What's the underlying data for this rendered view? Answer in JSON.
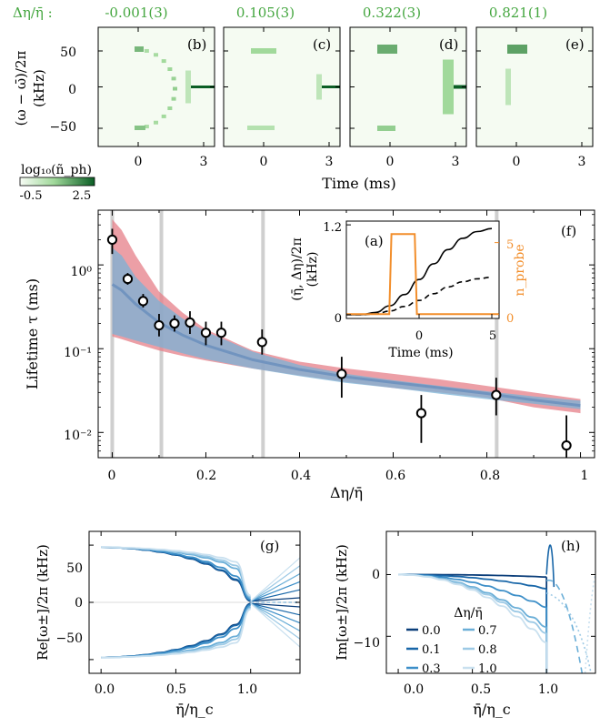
{
  "colors": {
    "green": "#44a63f",
    "green_dark": "#0b5e25",
    "green_light": "#e9f6e4",
    "orange": "#f28e2b",
    "red_band": "#e57f88",
    "blue_band": "#7ab1d6",
    "overlap": "#8d8bb6",
    "median": "#6b8fbd",
    "vline": "#cfcfcf",
    "blues": [
      "#0b3e7a",
      "#1866a8",
      "#3d8fc8",
      "#6aaed7",
      "#9cc9e5",
      "#c9e0ef"
    ]
  },
  "top_row": {
    "delta_label": "Δη/η̄ :",
    "deltas": [
      "-0.001(3)",
      "0.105(3)",
      "0.322(3)",
      "0.821(1)"
    ],
    "panel_labels": [
      "(b)",
      "(c)",
      "(d)",
      "(e)"
    ],
    "ylabel_line1": "(ω − ω̄)/2π",
    "ylabel_line2": "(kHz)",
    "yticks": [
      "50",
      "0",
      "−50"
    ],
    "xticks": [
      "0",
      "3"
    ],
    "xlabel": "Time (ms)",
    "colorbar_label": "log₁₀(ñ_ph)",
    "colorbar_ticks": [
      "-0.5",
      "2.5"
    ]
  },
  "panel_f": {
    "label": "(f)",
    "ylabel": "Lifetime τ (ms)",
    "xlabel": "Δη/η̄",
    "xticks": [
      "0",
      "0.2",
      "0.4",
      "0.6",
      "0.8",
      "1"
    ],
    "ytick_labels": [
      "10⁰",
      "10⁻¹",
      "10⁻²"
    ]
  },
  "panel_a": {
    "label": "(a)",
    "ylabel_line1": "(η̄, Δη)/2π",
    "ylabel_line2": "(kHz)",
    "ylabel_right": "n_probe",
    "xlabel": "Time (ms)",
    "yticks_left": [
      "1.2",
      "0"
    ],
    "yticks_right": [
      "5",
      "0"
    ],
    "xticks": [
      "0",
      "5"
    ]
  },
  "panel_g": {
    "label": "(g)",
    "ylabel": "Re[ω±]/2π (kHz)",
    "xlabel": "η̄/η_c",
    "yticks": [
      "50",
      "0",
      "−50"
    ],
    "xticks": [
      "0.0",
      "0.5",
      "1.0"
    ]
  },
  "panel_h": {
    "label": "(h)",
    "ylabel": "Im[ω±]/2π (kHz)",
    "xlabel": "η̄/η_c",
    "yticks": [
      "0",
      "−10"
    ],
    "xticks": [
      "0.0",
      "0.5",
      "1.0"
    ],
    "legend_title": "Δη/η̄",
    "legend_entries": [
      "0.0",
      "0.1",
      "0.3",
      "0.7",
      "0.8",
      "1.0"
    ]
  },
  "chart_data": [
    {
      "type": "heatmap",
      "panels": [
        "(b)",
        "(c)",
        "(d)",
        "(e)"
      ],
      "delta_eta_over_eta": [
        "-0.001(3)",
        "0.105(3)",
        "0.322(3)",
        "0.821(1)"
      ],
      "xlabel": "Time (ms)",
      "ylabel": "(ω − ω̄)/2π (kHz)",
      "ylim": [
        -75,
        75
      ],
      "colorbar": {
        "label": "log₁₀(ñ_ph)",
        "range": [
          -0.5,
          2.5
        ]
      }
    },
    {
      "type": "scatter",
      "panel": "(f)",
      "xlabel": "Δη/η̄",
      "ylabel": "Lifetime τ (ms)",
      "xlim": [
        -0.03,
        1.03
      ],
      "ylim": [
        0.005,
        4.5
      ],
      "yscale": "log",
      "grid": false,
      "points": [
        {
          "x": 0.0,
          "y": 2.0,
          "lo": 1.35,
          "hi": 2.7
        },
        {
          "x": 0.033,
          "y": 0.68,
          "lo": 0.58,
          "hi": 0.8
        },
        {
          "x": 0.066,
          "y": 0.37,
          "lo": 0.31,
          "hi": 0.45
        },
        {
          "x": 0.1,
          "y": 0.19,
          "lo": 0.14,
          "hi": 0.26
        },
        {
          "x": 0.133,
          "y": 0.2,
          "lo": 0.16,
          "hi": 0.25
        },
        {
          "x": 0.166,
          "y": 0.205,
          "lo": 0.15,
          "hi": 0.28
        },
        {
          "x": 0.2,
          "y": 0.155,
          "lo": 0.11,
          "hi": 0.21
        },
        {
          "x": 0.233,
          "y": 0.155,
          "lo": 0.11,
          "hi": 0.21
        },
        {
          "x": 0.32,
          "y": 0.12,
          "lo": 0.085,
          "hi": 0.17
        },
        {
          "x": 0.49,
          "y": 0.05,
          "lo": 0.026,
          "hi": 0.08
        },
        {
          "x": 0.66,
          "y": 0.017,
          "lo": 0.0075,
          "hi": 0.028
        },
        {
          "x": 0.82,
          "y": 0.028,
          "lo": 0.016,
          "hi": 0.045
        },
        {
          "x": 0.97,
          "y": 0.007,
          "lo": 0.005,
          "hi": 0.016
        }
      ],
      "band_red": {
        "x": [
          0.0,
          0.02,
          0.05,
          0.1,
          0.15,
          0.2,
          0.3,
          0.4,
          0.5,
          0.6,
          0.7,
          0.8,
          0.9,
          1.0
        ],
        "lo": [
          0.14,
          0.13,
          0.115,
          0.095,
          0.082,
          0.072,
          0.058,
          0.048,
          0.04,
          0.034,
          0.03,
          0.026,
          0.02,
          0.017
        ],
        "hi": [
          3.5,
          2.6,
          1.3,
          0.48,
          0.27,
          0.17,
          0.095,
          0.07,
          0.058,
          0.05,
          0.043,
          0.036,
          0.03,
          0.025
        ]
      },
      "band_blue": {
        "x": [
          0.0,
          0.02,
          0.05,
          0.1,
          0.15,
          0.2,
          0.3,
          0.4,
          0.5,
          0.6,
          0.7,
          0.8,
          0.9,
          1.0
        ],
        "lo": [
          0.15,
          0.14,
          0.125,
          0.105,
          0.088,
          0.075,
          0.058,
          0.047,
          0.039,
          0.034,
          0.029,
          0.025,
          0.022,
          0.019
        ],
        "hi": [
          1.6,
          1.3,
          0.72,
          0.37,
          0.23,
          0.16,
          0.092,
          0.064,
          0.05,
          0.042,
          0.036,
          0.031,
          0.027,
          0.024
        ]
      },
      "vertical_lines_x": [
        0.0,
        0.105,
        0.322,
        0.821
      ]
    },
    {
      "type": "line",
      "panel": "(a)",
      "xlabel": "Time (ms)",
      "xlim": [
        -5,
        5.5
      ],
      "ylim_left": [
        -0.05,
        1.25
      ],
      "ylim_right": [
        -0.3,
        6.5
      ],
      "series": [
        {
          "name": "η̄",
          "x": [
            -4,
            -3,
            -2,
            -1,
            0,
            1,
            2,
            3,
            4,
            5
          ],
          "values": [
            0.0,
            0.03,
            0.12,
            0.27,
            0.47,
            0.68,
            0.87,
            1.02,
            1.11,
            1.15
          ]
        },
        {
          "name": "Δη",
          "x": [
            -4,
            -3,
            -2,
            -1,
            0,
            1,
            2,
            3,
            4,
            5
          ],
          "values": [
            0.0,
            0.01,
            0.05,
            0.11,
            0.19,
            0.28,
            0.37,
            0.44,
            0.48,
            0.5
          ]
        },
        {
          "name": "n_probe",
          "x": [
            -4,
            -2.05,
            -1.9,
            -0.3,
            -0.15,
            5
          ],
          "values": [
            0,
            0,
            5.6,
            5.6,
            0,
            0
          ]
        }
      ]
    },
    {
      "type": "line",
      "panel": "(g)",
      "xlabel": "η̄/η_c",
      "ylabel": "Re[ω±]/2π (kHz)",
      "xlim": [
        -0.08,
        1.33
      ],
      "ylim": [
        -62,
        62
      ],
      "x": [
        0.0,
        0.1,
        0.2,
        0.3,
        0.4,
        0.5,
        0.6,
        0.7,
        0.8,
        0.9,
        1.0
      ],
      "series": [
        {
          "name": "0.0",
          "values": [
            48,
            47.8,
            47,
            45.7,
            43.8,
            41.3,
            38,
            33.6,
            27.8,
            19.5,
            1
          ]
        },
        {
          "name": "0.1",
          "values": [
            48,
            47.8,
            47,
            45.8,
            44,
            41.5,
            38.3,
            34,
            28.3,
            20.2,
            1.5
          ]
        },
        {
          "name": "0.3",
          "values": [
            48,
            47.8,
            47.1,
            46,
            44.4,
            42.2,
            39.4,
            35.6,
            30.5,
            23,
            2.5
          ]
        },
        {
          "name": "0.7",
          "values": [
            48,
            47.9,
            47.4,
            46.6,
            45.4,
            43.8,
            41.7,
            38.9,
            35.2,
            29.7,
            4
          ]
        },
        {
          "name": "0.8",
          "values": [
            48,
            47.9,
            47.5,
            46.8,
            45.8,
            44.4,
            42.6,
            40.2,
            37,
            32.3,
            5
          ]
        },
        {
          "name": "1.0",
          "values": [
            48,
            47.9,
            47.6,
            47,
            46.2,
            45.1,
            43.6,
            41.7,
            39.1,
            35.4,
            6
          ]
        }
      ]
    },
    {
      "type": "line",
      "panel": "(h)",
      "xlabel": "η̄/η_c",
      "ylabel": "Im[ω±]/2π (kHz)",
      "xlim": [
        -0.08,
        1.33
      ],
      "ylim": [
        -16,
        7
      ],
      "x": [
        0.0,
        0.1,
        0.2,
        0.3,
        0.4,
        0.5,
        0.6,
        0.7,
        0.8,
        0.9,
        1.0
      ],
      "series": [
        {
          "name": "0.0",
          "values": [
            0,
            0,
            -0.01,
            -0.02,
            -0.04,
            -0.06,
            -0.1,
            -0.15,
            -0.22,
            -0.3,
            -0.4
          ]
        },
        {
          "name": "0.1",
          "values": [
            0,
            -0.02,
            -0.08,
            -0.18,
            -0.32,
            -0.5,
            -0.75,
            -1.05,
            -1.4,
            -1.8,
            -2.3
          ]
        },
        {
          "name": "0.3",
          "values": [
            0,
            -0.05,
            -0.2,
            -0.45,
            -0.8,
            -1.25,
            -1.85,
            -2.6,
            -3.4,
            -4.3,
            -5.3
          ]
        },
        {
          "name": "0.7",
          "values": [
            0,
            -0.07,
            -0.3,
            -0.7,
            -1.25,
            -2,
            -2.95,
            -4.1,
            -5.4,
            -6.9,
            -8.5
          ]
        },
        {
          "name": "0.8",
          "values": [
            0,
            -0.08,
            -0.33,
            -0.78,
            -1.4,
            -2.2,
            -3.25,
            -4.5,
            -6,
            -7.7,
            -9.5
          ]
        },
        {
          "name": "1.0",
          "values": [
            0,
            -0.09,
            -0.38,
            -0.88,
            -1.6,
            -2.5,
            -3.7,
            -5.1,
            -6.8,
            -8.8,
            -11
          ]
        }
      ]
    }
  ]
}
